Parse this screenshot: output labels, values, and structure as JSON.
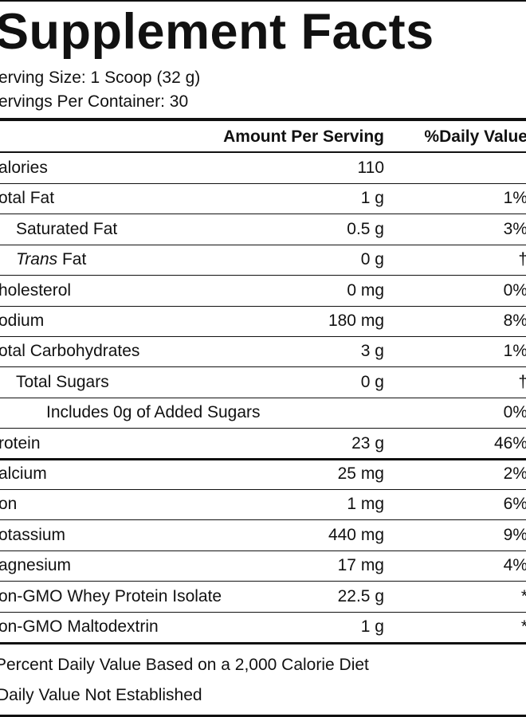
{
  "header": {
    "title": "Supplement Facts",
    "serving_size": "erving Size: 1 Scoop (32 g)",
    "servings_per_container": "ervings Per Container: 30"
  },
  "table": {
    "columns": [
      "Amount Per Serving",
      "%Daily Value"
    ],
    "rows": [
      {
        "name": "alories",
        "amount": "110"
      },
      {
        "name": "otal Fat",
        "amount": "1 g",
        "dv": "1%"
      },
      {
        "name": "Saturated Fat",
        "amount": "0.5 g",
        "dv": "3%"
      },
      {
        "name_italic": "Trans",
        "name": " Fat",
        "amount": "0 g",
        "dv": "†"
      },
      {
        "name": "holesterol",
        "amount": "0 mg",
        "dv": "0%"
      },
      {
        "name": "odium",
        "amount": "180 mg",
        "dv": "8%"
      },
      {
        "name": "otal Carbohydrates",
        "amount": "3 g",
        "dv": "1%"
      },
      {
        "name": "Total Sugars",
        "amount": "0 g",
        "dv": "†"
      },
      {
        "name": "Includes 0g of Added Sugars",
        "dv": "0%"
      },
      {
        "name": "rotein",
        "amount": "23 g",
        "dv": "46%"
      },
      {
        "name": "alcium",
        "amount": "25 mg",
        "dv": "2%"
      },
      {
        "name": "on",
        "amount": "1 mg",
        "dv": "6%"
      },
      {
        "name": "otassium",
        "amount": "440 mg",
        "dv": "9%"
      },
      {
        "name": "agnesium",
        "amount": "17 mg",
        "dv": "4%"
      },
      {
        "name": "on-GMO Whey Protein Isolate",
        "amount": "22.5 g",
        "dv": "*"
      },
      {
        "name": "on-GMO Maltodextrin",
        "amount": "1 g",
        "dv": "*"
      }
    ]
  },
  "footnotes": [
    "Percent Daily Value Based on a 2,000 Calorie Diet",
    "Daily Value Not Established"
  ]
}
